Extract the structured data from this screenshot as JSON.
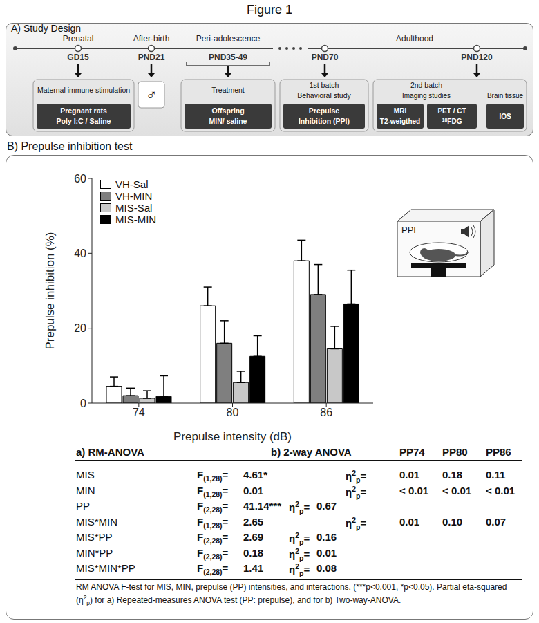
{
  "figure_title": "Figure 1",
  "panel_a": {
    "title": "A) Study Design",
    "periods": [
      "Prenatal",
      "After-birth",
      "Peri-adolescence",
      "Adulthood"
    ],
    "stages": [
      {
        "time": "GD15",
        "title": [
          "Maternal immune stimulation"
        ],
        "inner": [
          "Pregnant rats",
          "Poly I:C / Saline"
        ]
      },
      {
        "time": "PND21",
        "symbol": "♂"
      },
      {
        "time": "PND35-49",
        "title": [
          "Treatment"
        ],
        "inner": [
          "Offspring",
          "MIN/ saline"
        ]
      },
      {
        "time": "PND70",
        "title": [
          "1st batch",
          "Behavioral study"
        ],
        "inner": [
          "Prepulse",
          "Inhibition (PPI)"
        ]
      },
      {
        "time": "PND120",
        "title": [
          "2nd batch"
        ],
        "groups": [
          {
            "title": "Imaging studies",
            "inner": [
              [
                "MRI",
                "T2-weigthed"
              ],
              [
                "PET / CT",
                {
                  "sup": "18",
                  "text": "FDG"
                }
              ]
            ]
          },
          {
            "title": "Brain tissue",
            "inner": [
              [
                "IOS"
              ]
            ]
          }
        ]
      }
    ]
  },
  "chart_data": {
    "type": "bar",
    "title": "B) Prepulse inhibition test",
    "x_label": "Prepulse intensity (dB)",
    "y_label": "Prepulse inhibition (%)",
    "categories": [
      "74",
      "80",
      "86"
    ],
    "series": [
      {
        "name": "VH-Sal",
        "color": "#ffffff",
        "values": [
          4.5,
          26,
          38
        ],
        "errors": [
          2.5,
          5,
          5.5
        ]
      },
      {
        "name": "VH-MIN",
        "color": "#7f7f7f",
        "values": [
          2,
          16,
          29
        ],
        "errors": [
          2,
          6,
          8
        ]
      },
      {
        "name": "MIS-Sal",
        "color": "#c8c8c8",
        "values": [
          1.3,
          5.5,
          14.5
        ],
        "errors": [
          2,
          3,
          6
        ]
      },
      {
        "name": "MIS-MIN",
        "color": "#000000",
        "values": [
          1.8,
          12.5,
          26.5
        ],
        "errors": [
          5.5,
          5.5,
          9
        ]
      }
    ],
    "ylim": [
      0,
      60
    ],
    "yticks": [
      0,
      20,
      40,
      60
    ],
    "grid": false,
    "legend": "upper left"
  },
  "icon": {
    "label": "PPI"
  },
  "stats": {
    "f_symbol": "F",
    "eq": "=",
    "eta_symbol": {
      "text": "η",
      "sup": "2",
      "sub": "p"
    },
    "rm_anova": {
      "title": "a) RM-ANOVA",
      "rows": [
        {
          "effect": "MIS",
          "df": "(1,28)",
          "F": "4.61*"
        },
        {
          "effect": "MIN",
          "df": "(1,28)",
          "F": "0.01"
        },
        {
          "effect": "PP",
          "df": "(2,28)",
          "F": "41.14***",
          "eta": "0.67"
        },
        {
          "effect": "MIS*MIN",
          "df": "(1,28)",
          "F": "2.65"
        },
        {
          "effect": "MIS*PP",
          "df": "(2,28)",
          "F": "2.69",
          "eta": "0.16"
        },
        {
          "effect": "MIN*PP",
          "df": "(2,28)",
          "F": "0.18",
          "eta": "0.01"
        },
        {
          "effect": "MIS*MIN*PP",
          "df": "(2,28)",
          "F": "1.41",
          "eta": "0.08"
        }
      ]
    },
    "two_way": {
      "title": "b) 2-way ANOVA",
      "columns": [
        "PP74",
        "PP80",
        "PP86"
      ],
      "rows": [
        {
          "effect": "MIS",
          "values": [
            "0.01",
            "0.18",
            "0.11"
          ]
        },
        {
          "effect": "MIN",
          "values": [
            "< 0.01",
            "< 0.01",
            "< 0.01"
          ]
        },
        {
          "effect": "MIS*MIN",
          "values": [
            "0.01",
            "0.10",
            "0.07"
          ]
        }
      ]
    },
    "footnote": [
      "RM ANOVA F-test for MIS, MIN, prepulse (PP) intensities, and interactions. (***p<0.001, *p<0.05). Partial eta-squared (",
      {
        "text": "η",
        "sup": "2",
        "sub": "p"
      },
      ") for a) Repeated-measures ANOVA test (PP: prepulse), and for b) Two-way-ANOVA."
    ]
  }
}
